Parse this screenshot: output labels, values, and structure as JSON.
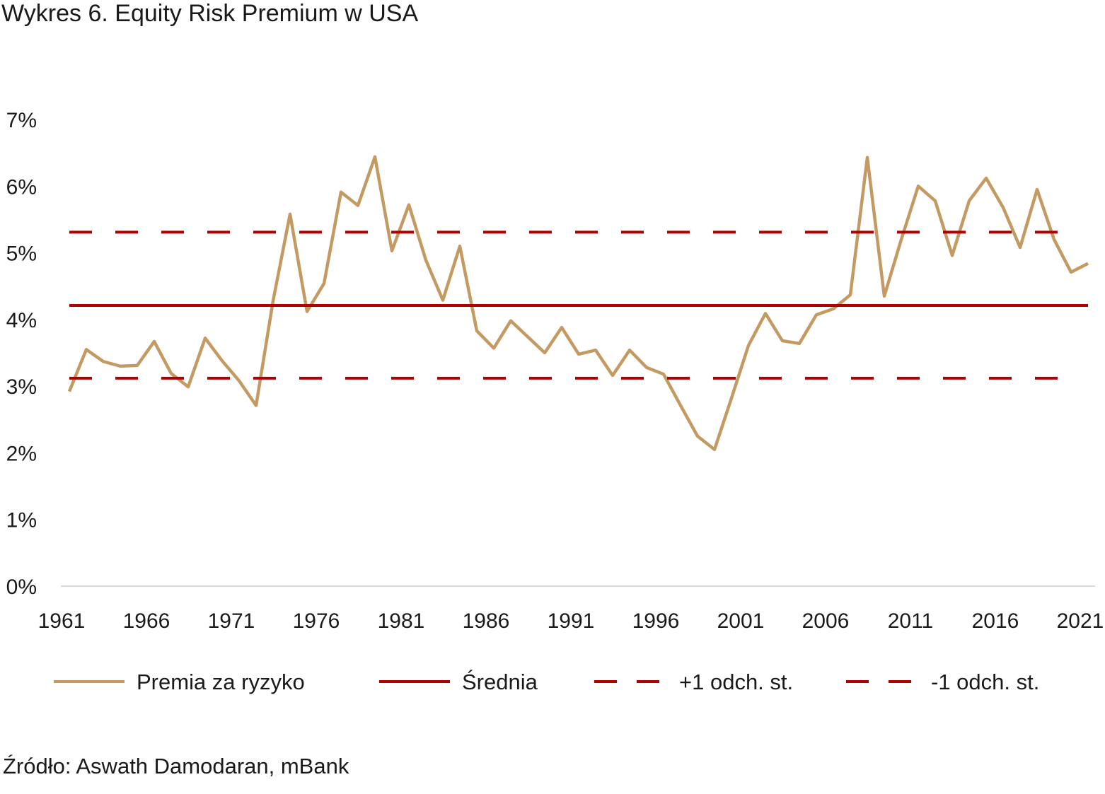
{
  "title": "Wykres 6. Equity Risk Premium w USA",
  "source": "Źródło: Aswath Damodaran, mBank",
  "chart_data": {
    "type": "line",
    "title": "Wykres 6. Equity Risk Premium w USA",
    "xlabel": "",
    "ylabel": "",
    "ylim": [
      0,
      7
    ],
    "yticks": [
      "0%",
      "1%",
      "2%",
      "3%",
      "4%",
      "5%",
      "6%",
      "7%"
    ],
    "xticks": [
      "1961",
      "1966",
      "1971",
      "1976",
      "1981",
      "1986",
      "1991",
      "1996",
      "2001",
      "2006",
      "2011",
      "2016",
      "2021"
    ],
    "grid": false,
    "legend": "bottom",
    "x": [
      1961,
      1962,
      1963,
      1964,
      1965,
      1966,
      1967,
      1968,
      1969,
      1970,
      1971,
      1972,
      1973,
      1974,
      1975,
      1976,
      1977,
      1978,
      1979,
      1980,
      1981,
      1982,
      1983,
      1984,
      1985,
      1986,
      1987,
      1988,
      1989,
      1990,
      1991,
      1992,
      1993,
      1994,
      1995,
      1996,
      1997,
      1998,
      1999,
      2000,
      2001,
      2002,
      2003,
      2004,
      2005,
      2006,
      2007,
      2008,
      2009,
      2010,
      2011,
      2012,
      2013,
      2014,
      2015,
      2016,
      2017,
      2018,
      2019,
      2020,
      2021
    ],
    "series": [
      {
        "name": "Premia za ryzyko",
        "color": "#c49a63",
        "style": "solid",
        "values": [
          2.92,
          3.55,
          3.37,
          3.3,
          3.31,
          3.67,
          3.19,
          2.99,
          3.72,
          3.38,
          3.08,
          2.71,
          4.28,
          5.58,
          4.12,
          4.54,
          5.91,
          5.71,
          6.44,
          5.03,
          5.72,
          4.89,
          4.29,
          5.1,
          3.83,
          3.57,
          3.98,
          3.74,
          3.5,
          3.88,
          3.48,
          3.54,
          3.16,
          3.54,
          3.28,
          3.18,
          2.71,
          2.25,
          2.05,
          2.82,
          3.61,
          4.09,
          3.68,
          3.64,
          4.07,
          4.16,
          4.37,
          6.43,
          4.35,
          5.2,
          6.0,
          5.78,
          4.96,
          5.78,
          6.12,
          5.68,
          5.08,
          5.95,
          5.2,
          4.71,
          4.84
        ]
      },
      {
        "name": "Średnia",
        "color": "#b00000",
        "style": "solid",
        "constant": 4.21
      },
      {
        "name": "+1 odch. st.",
        "color": "#b00000",
        "style": "dashed",
        "constant": 5.31
      },
      {
        "name": "-1 odch. st.",
        "color": "#b00000",
        "style": "dashed",
        "constant": 3.12
      }
    ]
  }
}
